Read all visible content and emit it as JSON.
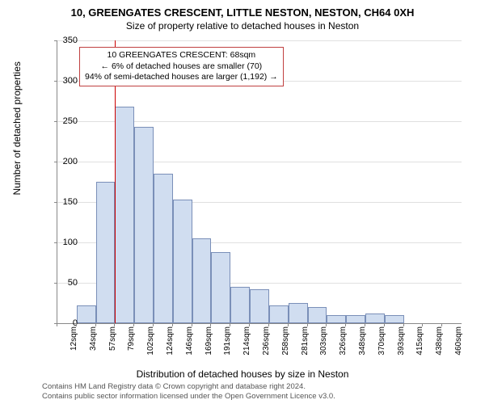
{
  "title": "10, GREENGATES CRESCENT, LITTLE NESTON, NESTON, CH64 0XH",
  "subtitle": "Size of property relative to detached houses in Neston",
  "chart": {
    "type": "histogram",
    "y_axis": {
      "label": "Number of detached properties",
      "min": 0,
      "max": 350,
      "tick_step": 50,
      "ticks": [
        0,
        50,
        100,
        150,
        200,
        250,
        300,
        350
      ]
    },
    "x_axis": {
      "label": "Distribution of detached houses by size in Neston",
      "tick_labels": [
        "12sqm",
        "34sqm",
        "57sqm",
        "79sqm",
        "102sqm",
        "124sqm",
        "146sqm",
        "169sqm",
        "191sqm",
        "214sqm",
        "236sqm",
        "258sqm",
        "281sqm",
        "303sqm",
        "326sqm",
        "348sqm",
        "370sqm",
        "393sqm",
        "415sqm",
        "438sqm",
        "460sqm"
      ]
    },
    "bars": {
      "values": [
        0,
        22,
        175,
        268,
        243,
        185,
        153,
        105,
        88,
        45,
        42,
        22,
        25,
        20,
        10,
        10,
        12,
        10,
        0,
        0,
        0
      ],
      "fill_color": "#d0ddf0",
      "border_color": "#7a8fb8"
    },
    "marker": {
      "value_sqm": 68,
      "color": "#cc0000"
    },
    "grid_color": "#e0e0e0",
    "axis_color": "#888888",
    "background_color": "#ffffff"
  },
  "annotation": {
    "line1": "10 GREENGATES CRESCENT: 68sqm",
    "line2": "← 6% of detached houses are smaller (70)",
    "line3": "94% of semi-detached houses are larger (1,192) →",
    "border_color": "#c04040"
  },
  "footnote": {
    "line1": "Contains HM Land Registry data © Crown copyright and database right 2024.",
    "line2": "Contains public sector information licensed under the Open Government Licence v3.0."
  }
}
